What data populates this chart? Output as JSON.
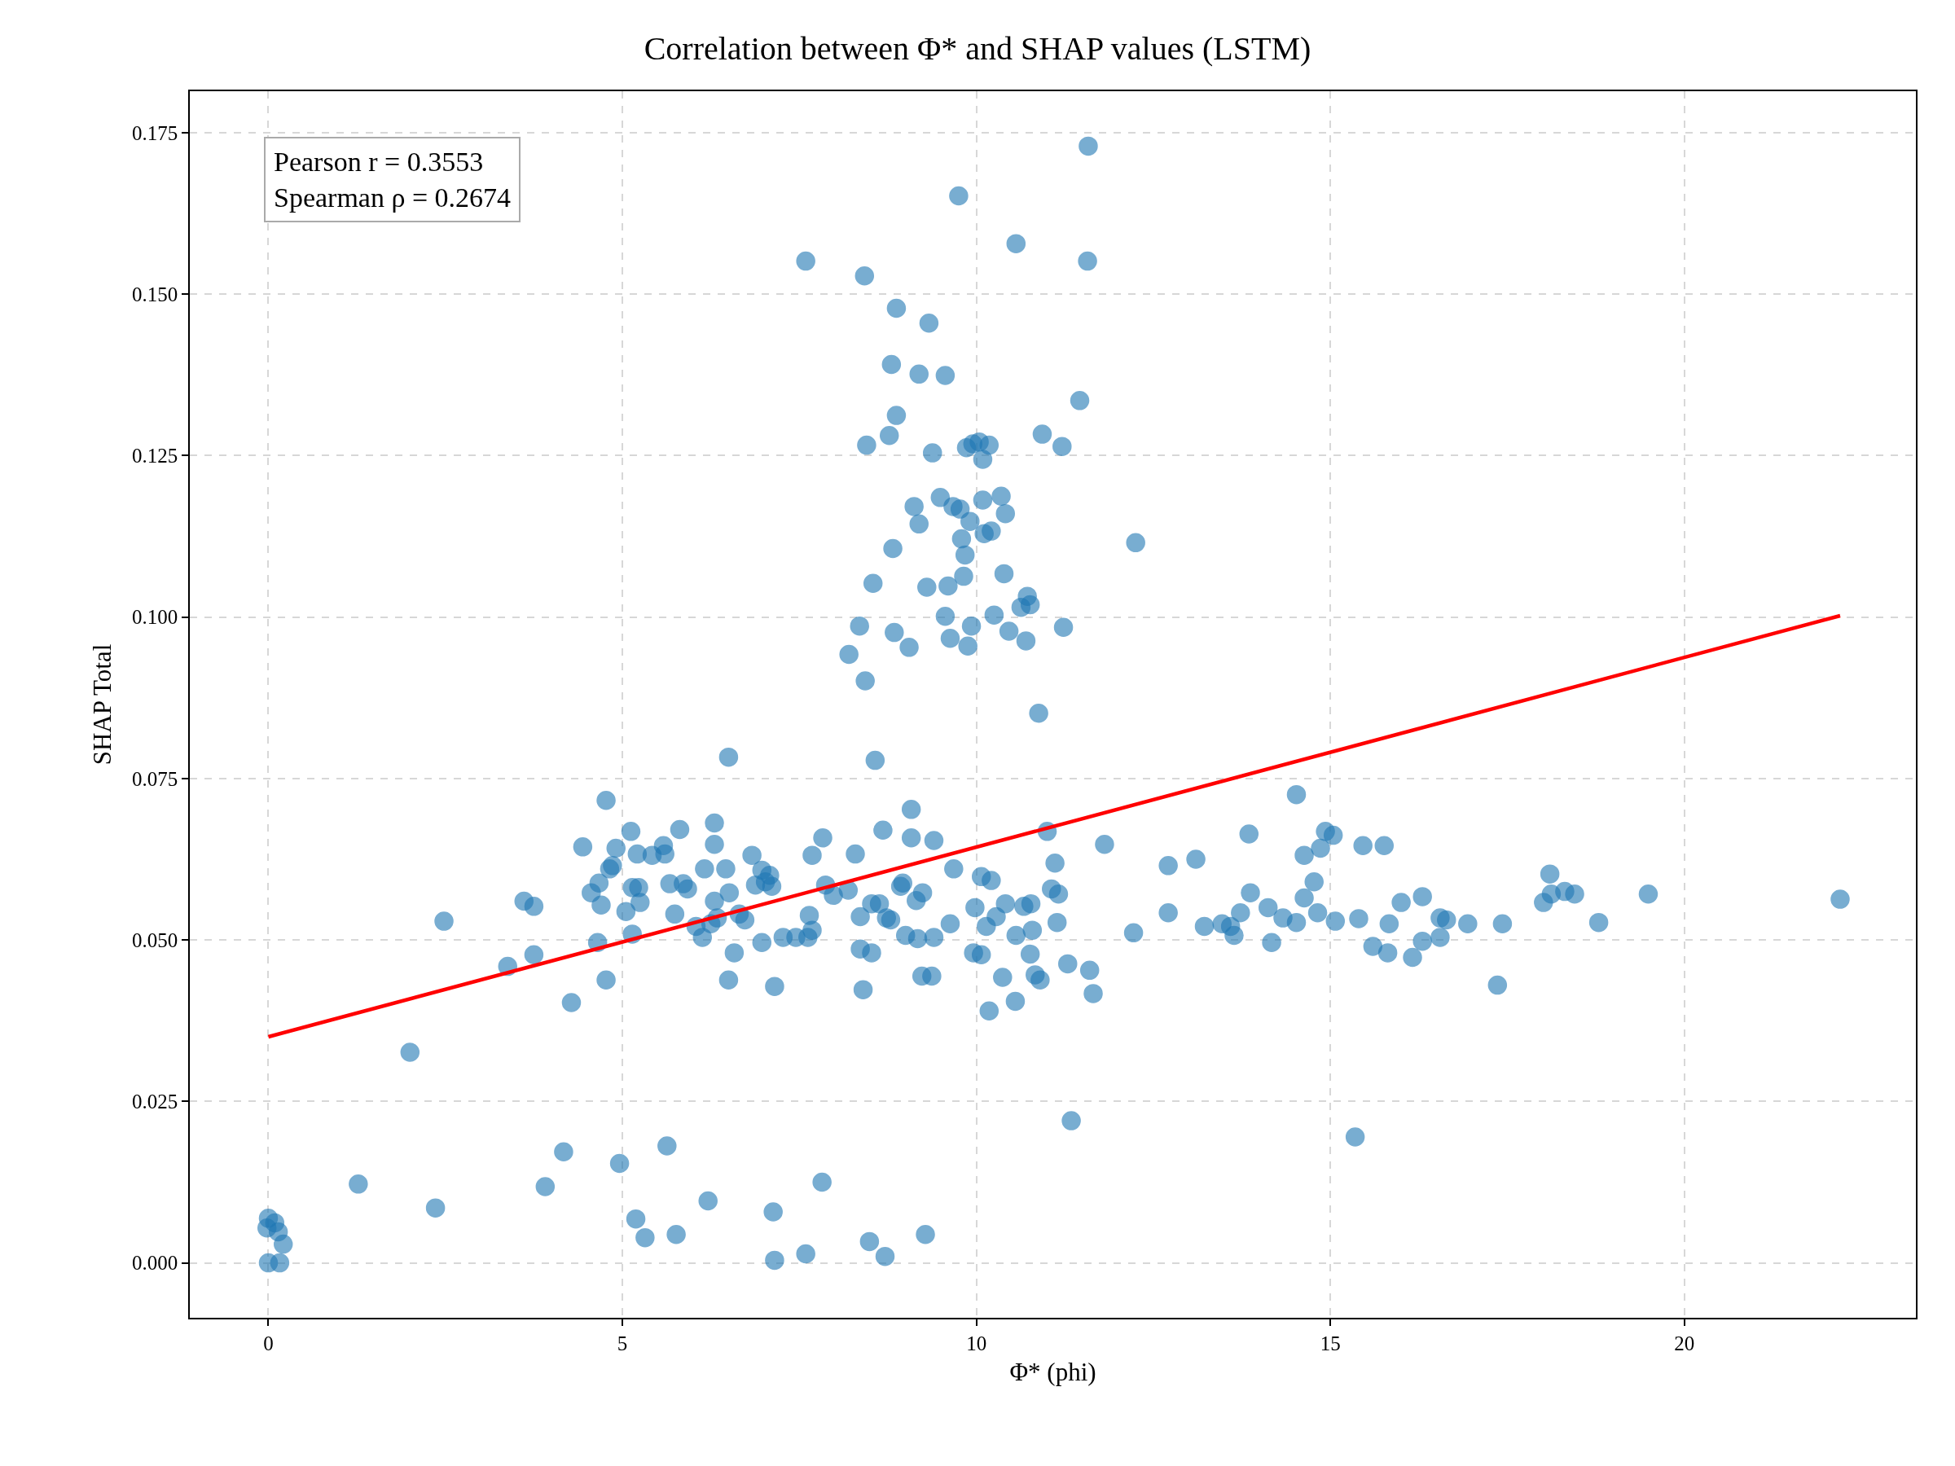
{
  "chart_data": {
    "type": "scatter",
    "title": "Correlation between Φ* and SHAP values (LSTM)",
    "xlabel": "Φ* (phi)",
    "ylabel": "SHAP Total",
    "xlim": [
      -1.11,
      23.27
    ],
    "ylim": [
      -0.0085,
      0.1814
    ],
    "xticks": [
      0,
      5,
      10,
      15,
      20
    ],
    "yticks": [
      {
        "value": 0,
        "label": "0.000"
      },
      {
        "value": 0.025,
        "label": "0.025"
      },
      {
        "value": 0.05,
        "label": "0.050"
      },
      {
        "value": 0.075,
        "label": "0.075"
      },
      {
        "value": 0.1,
        "label": "0.100"
      },
      {
        "value": 0.125,
        "label": "0.125"
      },
      {
        "value": 0.15,
        "label": "0.150"
      },
      {
        "value": 0.175,
        "label": "0.175"
      }
    ],
    "grid": true,
    "marker": "circle",
    "annotations": [
      "Pearson r = 0.3553\nSpearman ρ = 0.2674"
    ],
    "series": [
      {
        "type": "scatter",
        "color": "#1f77b4",
        "x": [
          0,
          0,
          -0.02,
          0.09,
          0.14,
          0.21,
          0.16,
          1.27,
          2.0,
          2.36,
          2.48,
          3.38,
          3.61,
          3.75,
          3.75,
          3.91,
          4.17,
          4.28,
          4.44,
          4.56,
          4.65,
          4.67,
          4.7,
          4.77,
          4.77,
          4.82,
          4.86,
          4.91,
          4.96,
          5.05,
          5.12,
          5.14,
          5.14,
          5.19,
          5.21,
          5.23,
          5.25,
          5.32,
          5.42,
          5.58,
          5.6,
          5.63,
          5.67,
          5.74,
          5.76,
          5.81,
          5.86,
          5.92,
          6.04,
          6.13,
          6.16,
          6.21,
          6.25,
          6.3,
          6.3,
          6.3,
          6.34,
          6.46,
          6.5,
          6.5,
          6.51,
          6.58,
          6.65,
          6.73,
          6.83,
          6.88,
          6.97,
          6.97,
          7.02,
          7.08,
          7.11,
          7.13,
          7.15,
          7.15,
          7.27,
          7.45,
          7.59,
          7.59,
          7.62,
          7.64,
          7.68,
          7.68,
          7.82,
          7.83,
          7.87,
          7.98,
          8.19,
          8.2,
          8.29,
          8.35,
          8.36,
          8.36,
          8.4,
          8.42,
          8.43,
          8.45,
          8.49,
          8.52,
          8.52,
          8.54,
          8.57,
          8.63,
          8.68,
          8.71,
          8.73,
          8.77,
          8.79,
          8.8,
          8.82,
          8.84,
          8.87,
          8.87,
          8.93,
          8.96,
          9.0,
          9.05,
          9.08,
          9.08,
          9.12,
          9.15,
          9.17,
          9.19,
          9.19,
          9.23,
          9.24,
          9.28,
          9.3,
          9.33,
          9.37,
          9.38,
          9.4,
          9.4,
          9.49,
          9.56,
          9.56,
          9.6,
          9.63,
          9.63,
          9.67,
          9.68,
          9.75,
          9.77,
          9.79,
          9.82,
          9.84,
          9.86,
          9.88,
          9.91,
          9.93,
          9.95,
          9.96,
          9.98,
          10.04,
          10.07,
          10.07,
          10.09,
          10.09,
          10.11,
          10.14,
          10.18,
          10.18,
          10.21,
          10.21,
          10.25,
          10.28,
          10.35,
          10.37,
          10.39,
          10.41,
          10.41,
          10.46,
          10.55,
          10.56,
          10.56,
          10.63,
          10.67,
          10.7,
          10.72,
          10.76,
          10.76,
          10.77,
          10.79,
          10.83,
          10.88,
          10.9,
          10.93,
          11.0,
          11.06,
          11.11,
          11.14,
          11.16,
          11.21,
          11.23,
          11.29,
          11.34,
          11.46,
          11.57,
          11.58,
          11.6,
          11.65,
          11.81,
          12.22,
          12.25,
          12.71,
          12.71,
          13.1,
          13.22,
          13.47,
          13.59,
          13.64,
          13.73,
          13.85,
          13.87,
          14.12,
          14.17,
          14.33,
          14.52,
          14.52,
          14.63,
          14.63,
          14.77,
          14.82,
          14.86,
          14.93,
          15.04,
          15.07,
          15.35,
          15.4,
          15.46,
          15.6,
          15.76,
          15.81,
          15.83,
          16.0,
          16.16,
          16.3,
          16.3,
          16.55,
          16.55,
          16.64,
          16.94,
          17.36,
          17.43,
          18.01,
          18.1,
          18.12,
          18.31,
          18.45,
          18.79,
          19.49,
          22.2
        ],
        "values": [
          0,
          0.0069,
          0.0054,
          0.0062,
          0.0048,
          0.0029,
          0,
          0.0122,
          0.0326,
          0.0085,
          0.0529,
          0.0459,
          0.056,
          0.0552,
          0.0477,
          0.0118,
          0.0172,
          0.0403,
          0.0644,
          0.0573,
          0.0496,
          0.0588,
          0.0554,
          0.0716,
          0.0438,
          0.061,
          0.0615,
          0.0642,
          0.0154,
          0.0544,
          0.0668,
          0.0509,
          0.0581,
          0.0068,
          0.0633,
          0.0581,
          0.0558,
          0.0039,
          0.0631,
          0.0646,
          0.0633,
          0.0181,
          0.0587,
          0.054,
          0.0044,
          0.0671,
          0.0587,
          0.0579,
          0.0521,
          0.0504,
          0.061,
          0.0096,
          0.0525,
          0.0681,
          0.0648,
          0.056,
          0.0534,
          0.061,
          0.0783,
          0.0438,
          0.0573,
          0.048,
          0.054,
          0.0531,
          0.0631,
          0.0585,
          0.0496,
          0.0608,
          0.059,
          0.06,
          0.0583,
          0.0079,
          0.0004,
          0.0428,
          0.0504,
          0.0504,
          0.1551,
          0.0014,
          0.0504,
          0.0538,
          0.0631,
          0.0515,
          0.0125,
          0.0658,
          0.0585,
          0.0569,
          0.0577,
          0.0942,
          0.0633,
          0.0986,
          0.0536,
          0.0486,
          0.0423,
          0.1528,
          0.0901,
          0.1266,
          0.0033,
          0.0556,
          0.048,
          0.1052,
          0.0778,
          0.0556,
          0.067,
          0.001,
          0.0534,
          0.1281,
          0.0531,
          0.1391,
          0.1106,
          0.0976,
          0.1312,
          0.1478,
          0.0583,
          0.0588,
          0.0507,
          0.0953,
          0.0702,
          0.0658,
          0.1171,
          0.0561,
          0.0502,
          0.1376,
          0.1144,
          0.0444,
          0.0573,
          0.0044,
          0.1046,
          0.1455,
          0.0444,
          0.1254,
          0.0654,
          0.0504,
          0.1185,
          0.1374,
          0.1001,
          0.1048,
          0.0967,
          0.0525,
          0.1171,
          0.061,
          0.1652,
          0.1167,
          0.1121,
          0.1063,
          0.1096,
          0.1262,
          0.0955,
          0.1148,
          0.0986,
          0.1268,
          0.048,
          0.055,
          0.1271,
          0.0598,
          0.0477,
          0.1244,
          0.1181,
          0.1129,
          0.0521,
          0.1266,
          0.039,
          0.1133,
          0.0592,
          0.1003,
          0.0536,
          0.1187,
          0.0442,
          0.1067,
          0.116,
          0.0556,
          0.0978,
          0.0405,
          0.1578,
          0.0507,
          0.1015,
          0.0552,
          0.0963,
          0.1032,
          0.1019,
          0.0478,
          0.0556,
          0.0515,
          0.0446,
          0.0851,
          0.0438,
          0.1283,
          0.0668,
          0.0579,
          0.0619,
          0.0527,
          0.0571,
          0.1264,
          0.0984,
          0.0463,
          0.022,
          0.1335,
          0.1551,
          0.1729,
          0.0453,
          0.0417,
          0.0648,
          0.0511,
          0.1115,
          0.0615,
          0.0542,
          0.0625,
          0.0521,
          0.0525,
          0.0521,
          0.0507,
          0.0542,
          0.0664,
          0.0573,
          0.055,
          0.0496,
          0.0534,
          0.0725,
          0.0527,
          0.0565,
          0.0631,
          0.059,
          0.0542,
          0.0642,
          0.0668,
          0.0662,
          0.0529,
          0.0195,
          0.0533,
          0.0646,
          0.049,
          0.0646,
          0.048,
          0.0525,
          0.0558,
          0.0473,
          0.0567,
          0.0498,
          0.0504,
          0.0534,
          0.0531,
          0.0525,
          0.043,
          0.0525,
          0.0558,
          0.0602,
          0.0571,
          0.0575,
          0.0571,
          0.0527,
          0.0571,
          0.0563
        ]
      },
      {
        "type": "line",
        "color": "#ff0000",
        "marker": "none",
        "line_style": "solid",
        "x": [
          0,
          22.2
        ],
        "values": [
          0.035,
          0.1002
        ]
      }
    ]
  }
}
